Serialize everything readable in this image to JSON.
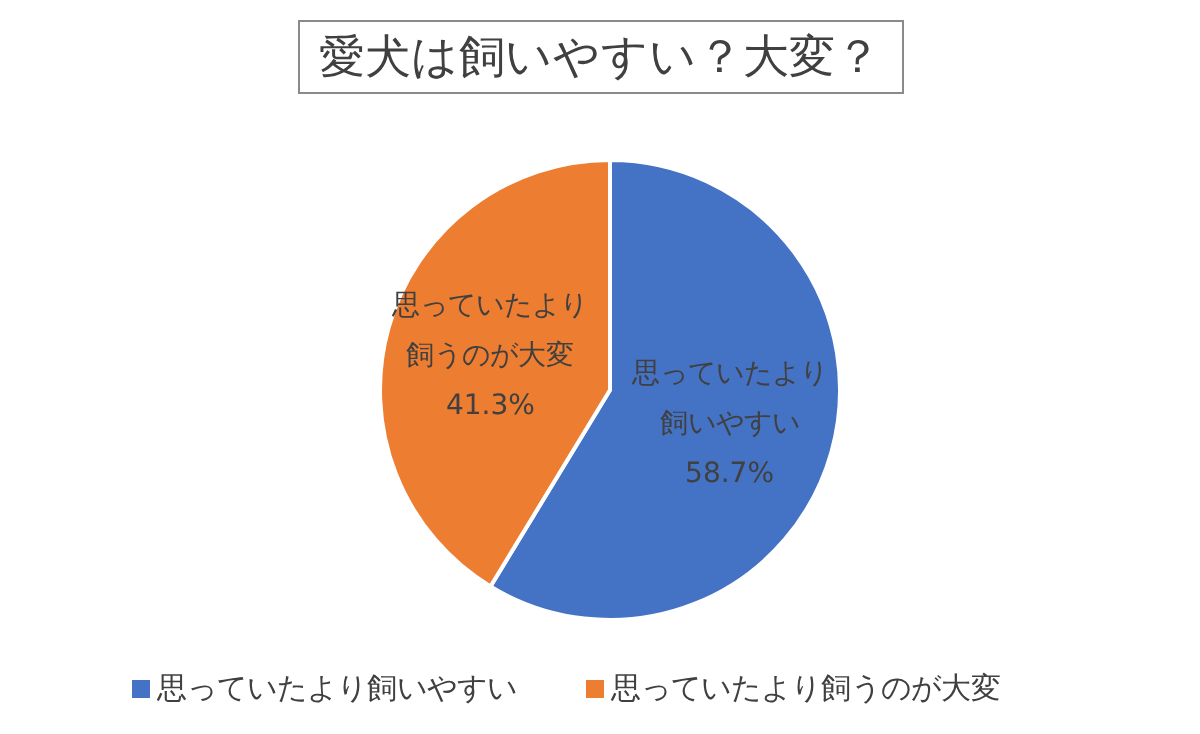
{
  "chart_data": {
    "type": "pie",
    "title": "愛犬は飼いやすい？大変？",
    "categories": [
      "思っていたより飼いやすい",
      "思っていたより飼うのが大変"
    ],
    "values": [
      58.7,
      41.3
    ],
    "colors": [
      "#4472c4",
      "#ed7d31"
    ],
    "value_labels": [
      "58.7%",
      "41.3%"
    ],
    "legend": "bottom"
  }
}
